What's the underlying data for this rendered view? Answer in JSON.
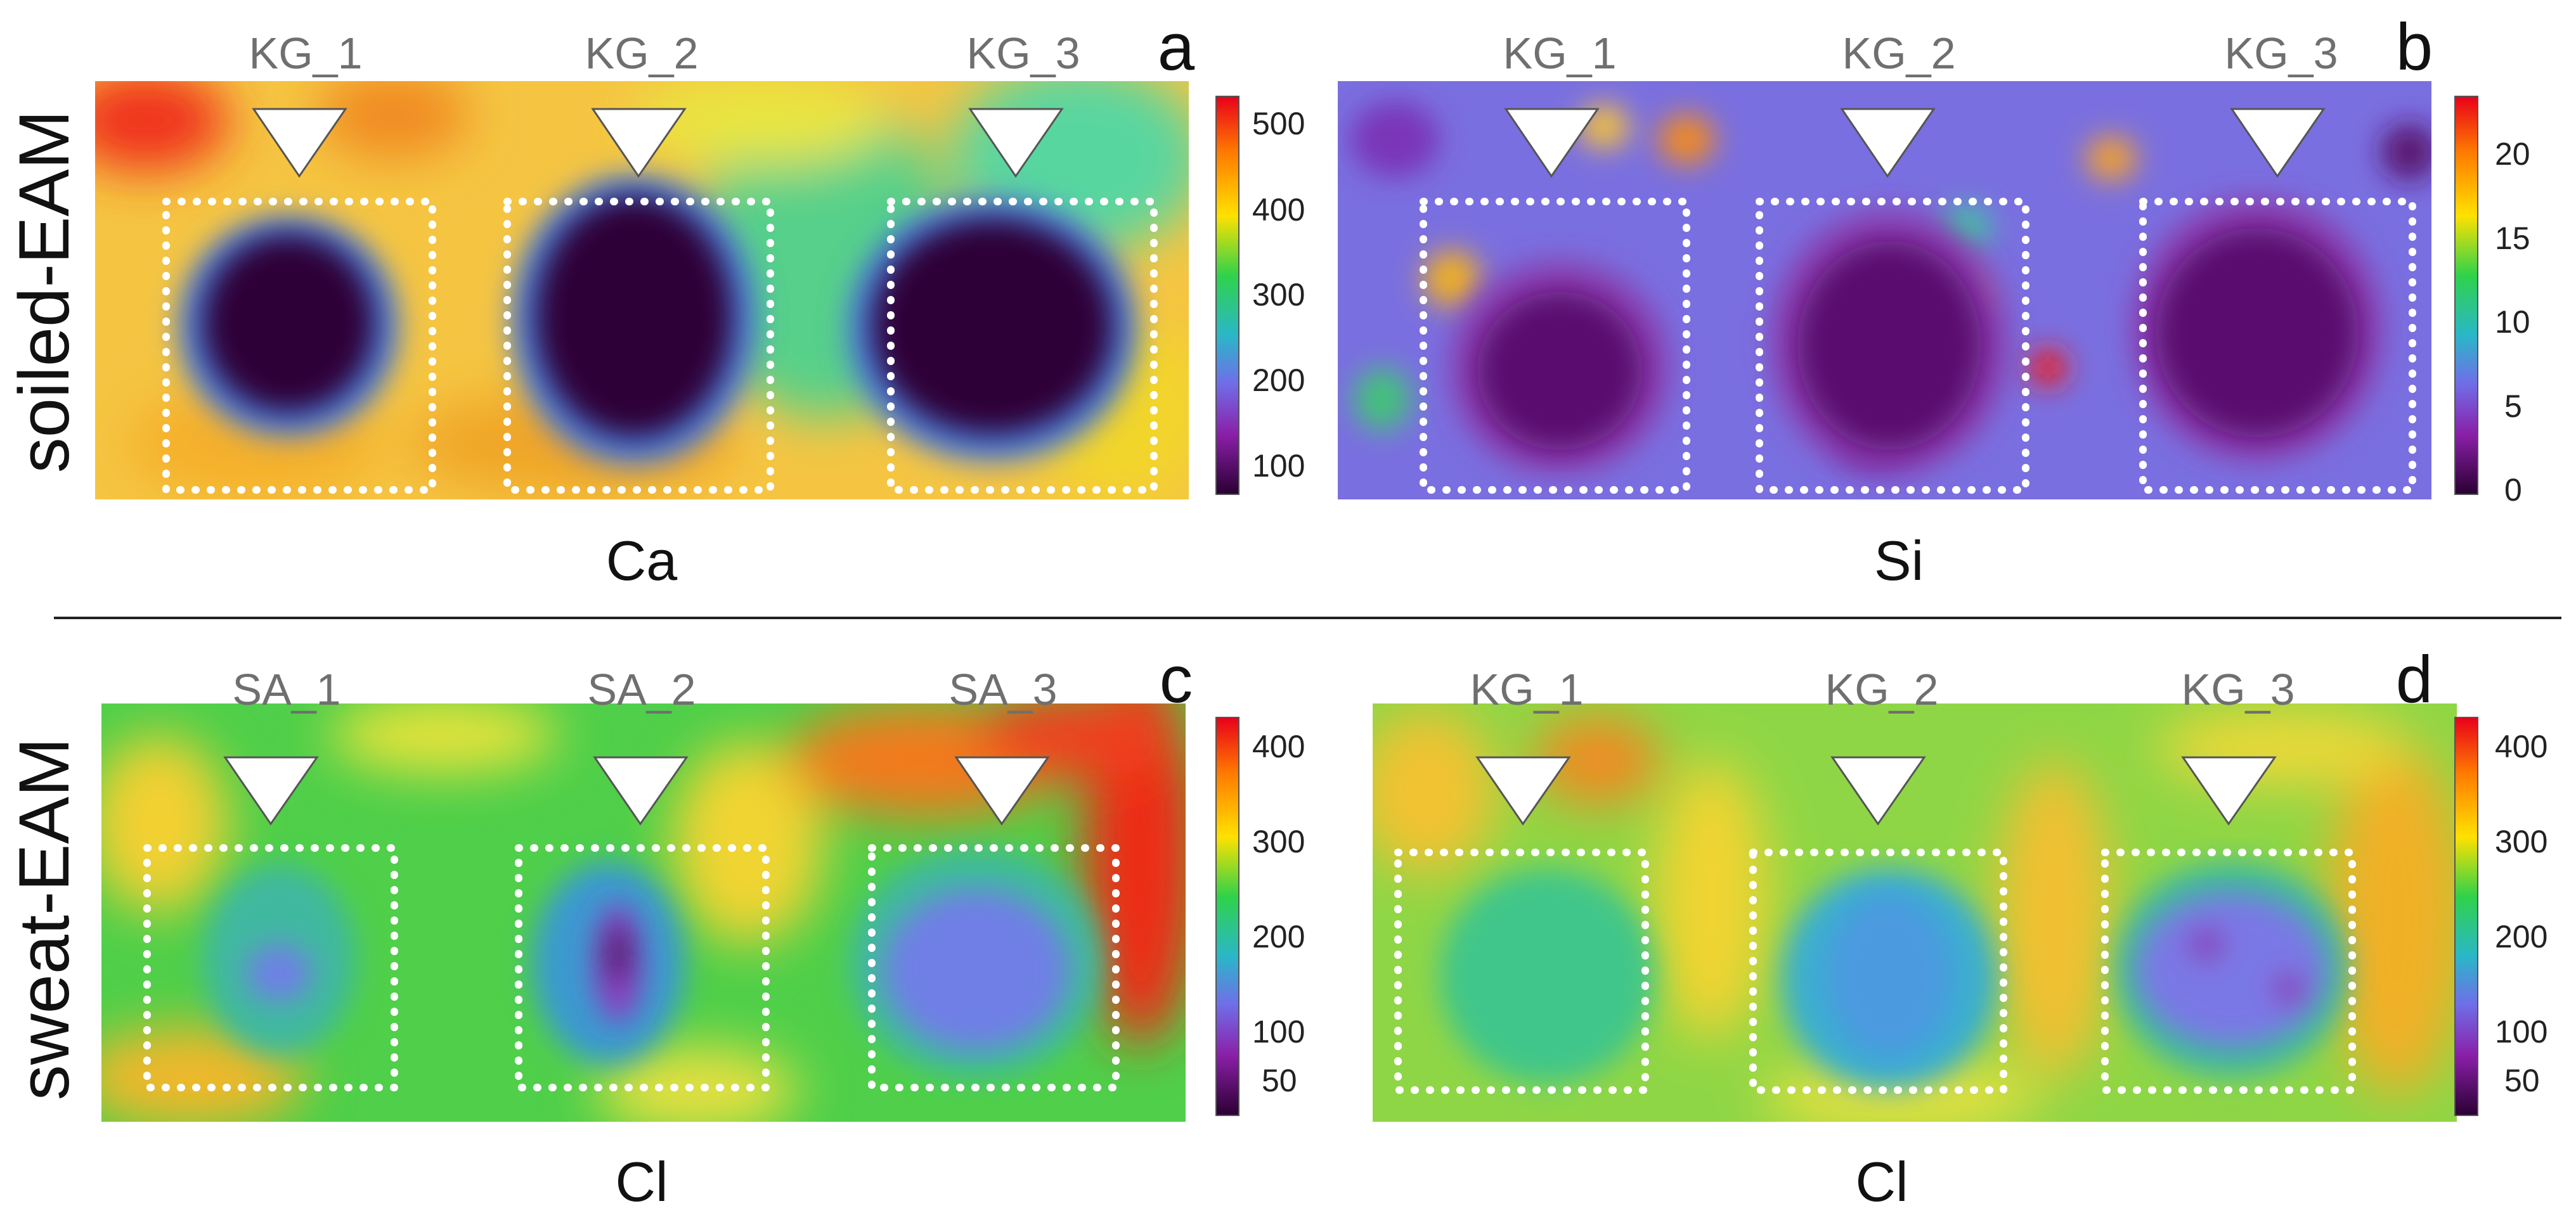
{
  "figure": {
    "row_labels": [
      "soiled-EAM",
      "sweat-EAM"
    ],
    "panels": [
      {
        "letter": "a",
        "element": "Ca",
        "samples": [
          "KG_1",
          "KG_2",
          "KG_3"
        ],
        "colorbar": {
          "ticks": [
            "500",
            "400",
            "300",
            "200",
            "100"
          ],
          "min": 50,
          "max": 540
        },
        "colors": {
          "background": "#f5c542",
          "spot": "#2e0038",
          "ring": "#4b7bd8"
        }
      },
      {
        "letter": "b",
        "element": "Si",
        "samples": [
          "KG_1",
          "KG_2",
          "KG_3"
        ],
        "colorbar": {
          "ticks": [
            "20",
            "15",
            "10",
            "5",
            "0"
          ],
          "min": 0,
          "max": 24
        },
        "colors": {
          "background": "#7a6fe0",
          "spot": "#5a0f6e",
          "ring": "#8a3fb0"
        }
      },
      {
        "letter": "c",
        "element": "Cl",
        "samples": [
          "SA_1",
          "SA_2",
          "SA_3"
        ],
        "colorbar": {
          "ticks": [
            "400",
            "300",
            "200",
            "100",
            "50"
          ],
          "min": 20,
          "max": 440
        },
        "colors": {
          "background": "#4fcf4a",
          "spot": "#6f7fe6",
          "ring": "#3fb8a0"
        }
      },
      {
        "letter": "d",
        "element": "Cl",
        "samples": [
          "KG_1",
          "KG_2",
          "KG_3"
        ],
        "colorbar": {
          "ticks": [
            "400",
            "300",
            "200",
            "100",
            "50"
          ],
          "min": 20,
          "max": 440
        },
        "colors": {
          "background": "#8fd646",
          "spot": "#7a78e6",
          "ring": "#3fb8a0"
        }
      }
    ]
  }
}
